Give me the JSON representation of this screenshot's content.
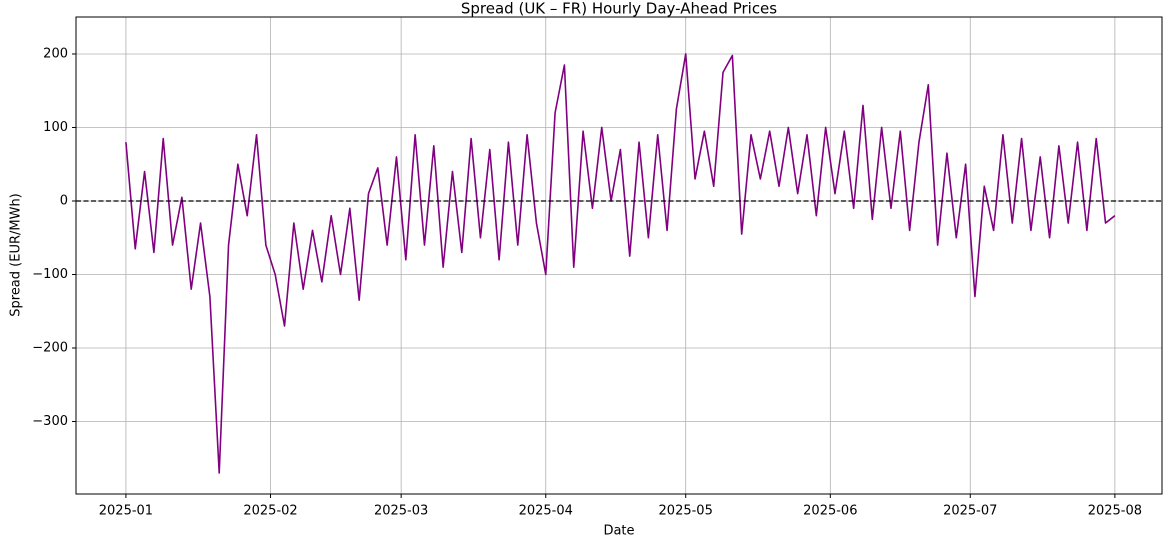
{
  "chart_data": {
    "type": "line",
    "title": "Spread (UK – FR) Hourly Day-Ahead Prices",
    "xlabel": "Date",
    "ylabel": "Spread (EUR/MWh)",
    "color": "#800080",
    "grid": true,
    "reference_line": {
      "value": 0,
      "color": "#000000",
      "style": "dashed"
    },
    "xlim": [
      20078.3,
      20311.1
    ],
    "ylim": [
      -398.6,
      250.3
    ],
    "xticks": [
      {
        "value": 20089,
        "label": "2025-01"
      },
      {
        "value": 20120,
        "label": "2025-02"
      },
      {
        "value": 20148,
        "label": "2025-03"
      },
      {
        "value": 20179,
        "label": "2025-04"
      },
      {
        "value": 20209,
        "label": "2025-05"
      },
      {
        "value": 20240,
        "label": "2025-06"
      },
      {
        "value": 20270,
        "label": "2025-07"
      },
      {
        "value": 20301,
        "label": "2025-08"
      }
    ],
    "yticks": [
      {
        "value": -300,
        "label": "−300"
      },
      {
        "value": -200,
        "label": "−200"
      },
      {
        "value": -100,
        "label": "−100"
      },
      0,
      100,
      200
    ],
    "x": [
      20089,
      20091,
      20093,
      20095,
      20097,
      20099,
      20101,
      20103,
      20105,
      20107,
      20109,
      20111,
      20113,
      20115,
      20117,
      20119,
      20121,
      20123,
      20125,
      20127,
      20129,
      20131,
      20133,
      20135,
      20137,
      20139,
      20141,
      20143,
      20145,
      20147,
      20149,
      20151,
      20153,
      20155,
      20157,
      20159,
      20161,
      20163,
      20165,
      20167,
      20169,
      20171,
      20173,
      20175,
      20177,
      20179,
      20181,
      20183,
      20185,
      20187,
      20189,
      20191,
      20193,
      20195,
      20197,
      20199,
      20201,
      20203,
      20205,
      20207,
      20209,
      20211,
      20213,
      20215,
      20217,
      20219,
      20221,
      20223,
      20225,
      20227,
      20229,
      20231,
      20233,
      20235,
      20237,
      20239,
      20241,
      20243,
      20245,
      20247,
      20249,
      20251,
      20253,
      20255,
      20257,
      20259,
      20261,
      20263,
      20265,
      20267,
      20269,
      20271,
      20273,
      20275,
      20277,
      20279,
      20281,
      20283,
      20285,
      20287,
      20289,
      20291,
      20293,
      20295,
      20297,
      20299,
      20301
    ],
    "values": [
      80,
      -65,
      40,
      -70,
      85,
      -60,
      5,
      -120,
      -30,
      -130,
      -370,
      -60,
      50,
      -20,
      90,
      -60,
      -100,
      -170,
      -30,
      -120,
      -40,
      -110,
      -20,
      -100,
      -10,
      -135,
      10,
      45,
      -60,
      60,
      -80,
      90,
      -60,
      75,
      -90,
      40,
      -70,
      85,
      -50,
      70,
      -80,
      80,
      -60,
      90,
      -30,
      -100,
      120,
      185,
      -90,
      95,
      -10,
      100,
      0,
      70,
      -75,
      80,
      -50,
      90,
      -40,
      125,
      200,
      30,
      95,
      20,
      175,
      198,
      -45,
      90,
      30,
      95,
      20,
      100,
      10,
      90,
      -20,
      100,
      10,
      95,
      -10,
      130,
      -25,
      100,
      -10,
      95,
      -40,
      80,
      158,
      -60,
      65,
      -50,
      50,
      -130,
      20,
      -40,
      90,
      -30,
      85,
      -40,
      60,
      -50,
      75,
      -30,
      80,
      -40,
      85,
      -30,
      -20
    ]
  }
}
